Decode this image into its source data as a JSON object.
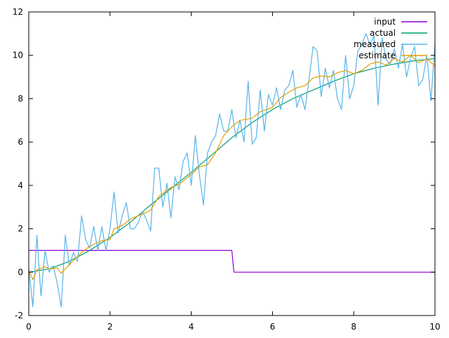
{
  "chart_data": {
    "type": "line",
    "title": "",
    "xlabel": "",
    "ylabel": "",
    "xlim": [
      0,
      10
    ],
    "ylim": [
      -2,
      12
    ],
    "x_ticks": [
      "0",
      "2",
      "4",
      "6",
      "8",
      "10"
    ],
    "y_ticks": [
      "-2",
      "0",
      "2",
      "4",
      "6",
      "8",
      "10",
      "12"
    ],
    "grid": false,
    "legend_position": "top-right",
    "series": [
      {
        "name": "input",
        "color": "#9400d3",
        "points": [
          [
            0,
            1
          ],
          [
            5,
            1
          ],
          [
            5.05,
            0
          ],
          [
            10,
            0
          ]
        ]
      },
      {
        "name": "actual",
        "color": "#009e73",
        "points": [
          [
            0,
            0
          ],
          [
            0.5,
            0.15
          ],
          [
            1,
            0.5
          ],
          [
            1.5,
            1.0
          ],
          [
            2,
            1.6
          ],
          [
            2.5,
            2.3
          ],
          [
            3,
            3.1
          ],
          [
            3.5,
            3.85
          ],
          [
            4,
            4.6
          ],
          [
            4.5,
            5.4
          ],
          [
            5,
            6.2
          ],
          [
            5.5,
            6.9
          ],
          [
            6,
            7.5
          ],
          [
            6.5,
            8.0
          ],
          [
            7,
            8.4
          ],
          [
            7.5,
            8.8
          ],
          [
            8,
            9.15
          ],
          [
            8.5,
            9.4
          ],
          [
            9,
            9.6
          ],
          [
            9.5,
            9.75
          ],
          [
            10,
            9.85
          ]
        ]
      },
      {
        "name": "measured",
        "color": "#56b4e9",
        "points": [
          [
            0,
            0.2
          ],
          [
            0.1,
            -1.6
          ],
          [
            0.2,
            1.7
          ],
          [
            0.3,
            -1.1
          ],
          [
            0.4,
            1.0
          ],
          [
            0.5,
            0.0
          ],
          [
            0.6,
            0.3
          ],
          [
            0.7,
            -0.5
          ],
          [
            0.8,
            -1.6
          ],
          [
            0.9,
            1.7
          ],
          [
            1.0,
            0.3
          ],
          [
            1.1,
            0.9
          ],
          [
            1.2,
            0.5
          ],
          [
            1.3,
            2.6
          ],
          [
            1.4,
            1.5
          ],
          [
            1.5,
            1.1
          ],
          [
            1.6,
            2.1
          ],
          [
            1.7,
            1.0
          ],
          [
            1.8,
            2.1
          ],
          [
            1.9,
            1.0
          ],
          [
            2.0,
            2.0
          ],
          [
            2.1,
            3.7
          ],
          [
            2.2,
            1.8
          ],
          [
            2.3,
            2.6
          ],
          [
            2.4,
            3.2
          ],
          [
            2.5,
            2.0
          ],
          [
            2.6,
            2.0
          ],
          [
            2.7,
            2.3
          ],
          [
            2.8,
            2.8
          ],
          [
            2.9,
            2.4
          ],
          [
            3.0,
            1.9
          ],
          [
            3.1,
            4.8
          ],
          [
            3.2,
            4.8
          ],
          [
            3.3,
            3.0
          ],
          [
            3.4,
            4.1
          ],
          [
            3.5,
            2.5
          ],
          [
            3.6,
            4.4
          ],
          [
            3.7,
            3.8
          ],
          [
            3.8,
            5.1
          ],
          [
            3.9,
            5.5
          ],
          [
            4.0,
            4.0
          ],
          [
            4.1,
            6.3
          ],
          [
            4.2,
            4.5
          ],
          [
            4.3,
            3.1
          ],
          [
            4.4,
            5.5
          ],
          [
            4.5,
            6.0
          ],
          [
            4.6,
            6.3
          ],
          [
            4.7,
            7.3
          ],
          [
            4.8,
            6.5
          ],
          [
            4.9,
            6.5
          ],
          [
            5.0,
            7.5
          ],
          [
            5.1,
            6.2
          ],
          [
            5.2,
            7.0
          ],
          [
            5.3,
            6.0
          ],
          [
            5.4,
            8.8
          ],
          [
            5.5,
            5.9
          ],
          [
            5.6,
            6.2
          ],
          [
            5.7,
            8.4
          ],
          [
            5.8,
            6.5
          ],
          [
            5.9,
            8.2
          ],
          [
            6.0,
            7.7
          ],
          [
            6.1,
            8.5
          ],
          [
            6.2,
            7.5
          ],
          [
            6.3,
            8.4
          ],
          [
            6.4,
            8.6
          ],
          [
            6.5,
            9.3
          ],
          [
            6.6,
            7.6
          ],
          [
            6.7,
            8.2
          ],
          [
            6.8,
            7.5
          ],
          [
            6.9,
            8.9
          ],
          [
            7.0,
            10.4
          ],
          [
            7.1,
            10.2
          ],
          [
            7.2,
            8.1
          ],
          [
            7.3,
            9.4
          ],
          [
            7.4,
            8.5
          ],
          [
            7.5,
            9.3
          ],
          [
            7.6,
            8.0
          ],
          [
            7.7,
            7.5
          ],
          [
            7.8,
            10.0
          ],
          [
            7.9,
            8.0
          ],
          [
            8.0,
            8.6
          ],
          [
            8.1,
            10.2
          ],
          [
            8.2,
            10.5
          ],
          [
            8.3,
            11.0
          ],
          [
            8.4,
            10.5
          ],
          [
            8.5,
            10.9
          ],
          [
            8.6,
            7.7
          ],
          [
            8.7,
            10.8
          ],
          [
            8.8,
            9.8
          ],
          [
            8.9,
            9.6
          ],
          [
            9.0,
            10.3
          ],
          [
            9.1,
            9.4
          ],
          [
            9.2,
            10.5
          ],
          [
            9.3,
            9.0
          ],
          [
            9.4,
            9.9
          ],
          [
            9.5,
            10.4
          ],
          [
            9.6,
            8.6
          ],
          [
            9.7,
            8.9
          ],
          [
            9.8,
            10.0
          ],
          [
            9.9,
            7.9
          ],
          [
            10.0,
            10.5
          ],
          [
            10.1,
            10.9
          ],
          [
            10.15,
            9.9
          ]
        ]
      },
      {
        "name": "estimate",
        "color": "#e69f00",
        "points": [
          [
            0,
            0.1
          ],
          [
            0.1,
            -0.35
          ],
          [
            0.2,
            0.1
          ],
          [
            0.4,
            0.25
          ],
          [
            0.5,
            0.15
          ],
          [
            0.7,
            0.2
          ],
          [
            0.8,
            -0.05
          ],
          [
            1.0,
            0.35
          ],
          [
            1.3,
            0.9
          ],
          [
            1.5,
            1.2
          ],
          [
            1.8,
            1.45
          ],
          [
            2.0,
            1.5
          ],
          [
            2.1,
            2.0
          ],
          [
            2.3,
            2.15
          ],
          [
            2.5,
            2.45
          ],
          [
            2.7,
            2.6
          ],
          [
            3.0,
            2.85
          ],
          [
            3.2,
            3.5
          ],
          [
            3.5,
            3.9
          ],
          [
            3.7,
            4.05
          ],
          [
            4.0,
            4.5
          ],
          [
            4.2,
            4.85
          ],
          [
            4.4,
            4.95
          ],
          [
            4.6,
            5.5
          ],
          [
            4.8,
            6.3
          ],
          [
            5.0,
            6.7
          ],
          [
            5.2,
            7.0
          ],
          [
            5.5,
            7.1
          ],
          [
            5.7,
            7.4
          ],
          [
            6.0,
            7.6
          ],
          [
            6.2,
            8.05
          ],
          [
            6.4,
            8.3
          ],
          [
            6.6,
            8.5
          ],
          [
            6.8,
            8.6
          ],
          [
            7.0,
            8.95
          ],
          [
            7.2,
            9.05
          ],
          [
            7.4,
            9.0
          ],
          [
            7.6,
            9.2
          ],
          [
            7.8,
            9.3
          ],
          [
            8.0,
            9.15
          ],
          [
            8.2,
            9.3
          ],
          [
            8.4,
            9.6
          ],
          [
            8.6,
            9.7
          ],
          [
            8.8,
            9.55
          ],
          [
            9.0,
            9.85
          ],
          [
            9.2,
            9.7
          ],
          [
            9.4,
            10.0
          ],
          [
            9.6,
            9.65
          ],
          [
            9.8,
            9.85
          ],
          [
            10.0,
            9.5
          ],
          [
            10.1,
            9.8
          ]
        ]
      }
    ]
  }
}
